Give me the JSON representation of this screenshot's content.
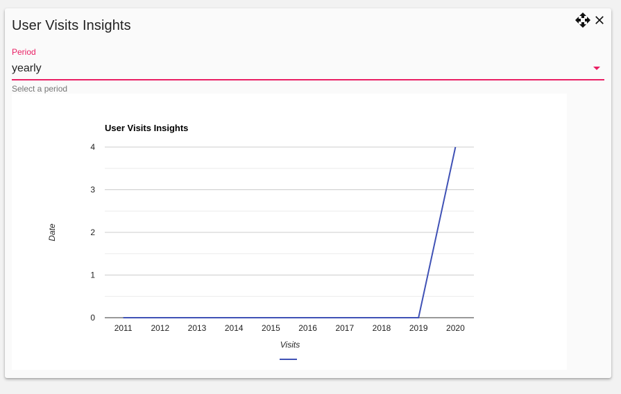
{
  "dialog": {
    "title": "User Visits Insights"
  },
  "period_field": {
    "label": "Period",
    "value": "yearly",
    "hint": "Select a period"
  },
  "icons": {
    "move": "move-icon",
    "close": "close-icon",
    "dropdown": "dropdown-arrow-icon"
  },
  "colors": {
    "accent": "#e91e63",
    "series": "#3f51b5"
  },
  "chart_data": {
    "type": "line",
    "title": "User Visits Insights",
    "xlabel": "Visits",
    "ylabel": "Date",
    "categories": [
      "2011",
      "2012",
      "2013",
      "2014",
      "2015",
      "2016",
      "2017",
      "2018",
      "2019",
      "2020"
    ],
    "series": [
      {
        "values": [
          0,
          0,
          0,
          0,
          0,
          0,
          0,
          0,
          0,
          4
        ]
      }
    ],
    "ylim": [
      0,
      4
    ],
    "yticks": [
      0,
      1,
      2,
      3,
      4
    ],
    "grid": true,
    "legend": "bottom"
  }
}
